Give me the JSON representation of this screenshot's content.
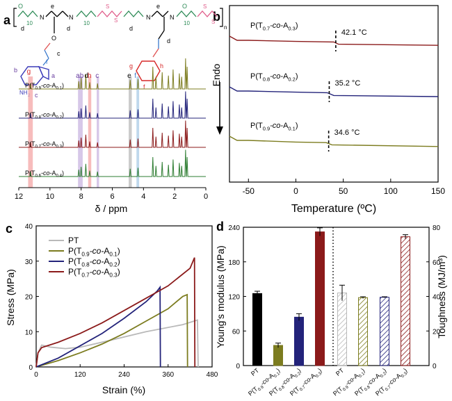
{
  "panel_letters": {
    "a": "a",
    "b": "b",
    "c": "c",
    "d": "d"
  },
  "colors": {
    "PT": "#000000",
    "T09": "#7c7c1f",
    "T08": "#23237a",
    "T07": "#8b1a1a",
    "T06": "#2e7d32",
    "pink": "#f4a6a6",
    "purple": "#c8b4e0",
    "blue": "#a9cbe6",
    "gray": "#b9b9b9",
    "struct_green": "#2e8b57",
    "struct_pink": "#e05c8a",
    "struct_blue": "#3a3ab8",
    "struct_red": "#d62828"
  },
  "structure": {
    "repeat_subscript": "10",
    "side_labels": [
      "e",
      "d",
      "e",
      "d",
      "c",
      "f",
      "g",
      "h"
    ],
    "a_label": "a",
    "b_label": "b",
    "nh2": "NH",
    "nh2_sub": "2",
    "n": "n",
    "n_atoms": [
      "N",
      "N",
      "N",
      "N"
    ],
    "o_atoms": [
      "O",
      "O",
      "O"
    ],
    "s_atoms": [
      "S",
      "S",
      "S",
      "S"
    ]
  },
  "panel_a": {
    "xlabel": "δ / ppm",
    "xticks": [
      "12",
      "10",
      "8",
      "6",
      "4",
      "2",
      "0"
    ],
    "peak_labels": [
      "g",
      "a",
      "b",
      "d",
      "h",
      "c",
      "e",
      "f"
    ],
    "series": [
      {
        "name": "P(T",
        "sub1": "0.9",
        "mid": "-co-",
        "a": "A",
        "sub2": "0.1",
        "close": ")",
        "color_key": "T09"
      },
      {
        "name": "P(T",
        "sub1": "0.8",
        "mid": "-co-",
        "a": "A",
        "sub2": "0.2",
        "close": ")",
        "color_key": "T08"
      },
      {
        "name": "P(T",
        "sub1": "0.7",
        "mid": "-co-",
        "a": "A",
        "sub2": "0.3",
        "close": ")",
        "color_key": "T07"
      },
      {
        "name": "P(T",
        "sub1": "0.6",
        "mid": "-co-",
        "a": "A",
        "sub2": "0.4",
        "close": ")",
        "color_key": "T06"
      }
    ]
  },
  "panel_b": {
    "xlabel": "Temperature (ºC)",
    "ylabel": "Endo",
    "xticks": [
      "-50",
      "0",
      "50",
      "100",
      "150"
    ],
    "curves": [
      {
        "name": "P(T",
        "sub1": "0.7",
        "mid": "-co-",
        "a": "A",
        "sub2": "0.3",
        "close": ")",
        "tg": "42.1 °C",
        "color_key": "T07"
      },
      {
        "name": "P(T",
        "sub1": "0.8",
        "mid": "-co-",
        "a": "A",
        "sub2": "0.2",
        "close": ")",
        "tg": "35.2 °C",
        "color_key": "T08"
      },
      {
        "name": "P(T",
        "sub1": "0.9",
        "mid": "-co-",
        "a": "A",
        "sub2": "0.1",
        "close": ")",
        "tg": "34.6 °C",
        "color_key": "T09"
      }
    ]
  },
  "chart_data": [
    {
      "type": "line",
      "panel": "b",
      "xlabel": "Temperature (ºC)",
      "ylabel": "Endo",
      "xlim": [
        -70,
        150
      ],
      "series": [
        {
          "name": "P(T0.7-co-A0.3)",
          "tg": 42.1,
          "x": [
            -70,
            -62,
            -50,
            0,
            40,
            45,
            150
          ],
          "y": [
            0.0,
            0.0,
            0.0,
            0.02,
            0.03,
            0.07,
            0.09
          ]
        },
        {
          "name": "P(T0.8-co-A0.2)",
          "tg": 35.2,
          "x": [
            -70,
            -62,
            -50,
            0,
            33,
            40,
            150
          ],
          "y": [
            0.0,
            0.0,
            0.0,
            0.02,
            0.03,
            0.08,
            0.1
          ]
        },
        {
          "name": "P(T0.9-co-A0.1)",
          "tg": 34.6,
          "x": [
            -70,
            -62,
            -50,
            0,
            32,
            38,
            150
          ],
          "y": [
            0.0,
            0.0,
            0.0,
            0.03,
            0.04,
            0.08,
            0.11
          ]
        }
      ]
    },
    {
      "type": "line",
      "panel": "c",
      "xlabel": "Strain (%)",
      "ylabel": "Stress (MPa)",
      "xlim": [
        0,
        480
      ],
      "ylim": [
        0,
        40
      ],
      "xticks": [
        "0",
        "120",
        "240",
        "360",
        "480"
      ],
      "yticks": [
        "0",
        "10",
        "20",
        "30",
        "40"
      ],
      "series": [
        {
          "name": "PT",
          "color_key": "gray",
          "x": [
            0,
            5,
            15,
            40,
            80,
            120,
            200,
            300,
            400,
            440,
            442
          ],
          "y": [
            0,
            4,
            6.2,
            5.6,
            5.2,
            5.6,
            7.5,
            10,
            12,
            13.3,
            0
          ]
        },
        {
          "name": "P(T0.9-co-A0.1)",
          "color_key": "T09",
          "x": [
            0,
            60,
            120,
            180,
            240,
            300,
            360,
            400,
            412,
            413
          ],
          "y": [
            0,
            1.8,
            4,
            6.5,
            9.5,
            13,
            16.5,
            20,
            20.5,
            0
          ]
        },
        {
          "name": "P(T0.8-co-A0.2)",
          "color_key": "T08",
          "x": [
            0,
            60,
            120,
            180,
            240,
            300,
            330,
            338,
            339
          ],
          "y": [
            0,
            2.5,
            6,
            9.5,
            13.8,
            18.5,
            21.5,
            22.6,
            0
          ]
        },
        {
          "name": "P(T0.7-co-A0.3)",
          "color_key": "T07",
          "x": [
            0,
            5,
            15,
            60,
            120,
            180,
            240,
            300,
            360,
            420,
            432,
            433
          ],
          "y": [
            0,
            4,
            5.5,
            7,
            9.5,
            12.5,
            16,
            19.5,
            23,
            28,
            31,
            0
          ]
        }
      ]
    },
    {
      "type": "bar",
      "panel": "d",
      "ylabel_left": "Young's modulus (MPa)",
      "ylabel_right": "Toughness (MJ/m³)",
      "ylim_left": [
        0,
        240
      ],
      "ylim_right": [
        0,
        80
      ],
      "yticks_left": [
        "0",
        "60",
        "120",
        "180",
        "240"
      ],
      "yticks_right": [
        "0",
        "20",
        "40",
        "60",
        "80"
      ],
      "modulus": [
        {
          "label": "PT",
          "value": 125,
          "error": 4,
          "color_key": "PT"
        },
        {
          "label": "P(T0.9-co-A0.1)",
          "value": 35,
          "error": 4,
          "color_key": "T09"
        },
        {
          "label": "P(T0.8-co-A0.2)",
          "value": 84,
          "error": 6,
          "color_key": "T08"
        },
        {
          "label": "P(T0.7-co-A0.3)",
          "value": 232,
          "error": 7,
          "color_key": "T07"
        }
      ],
      "toughness": [
        {
          "label": "PT",
          "value": 42,
          "error": 4.5,
          "color_key": "gray"
        },
        {
          "label": "P(T0.9-co-A0.1)",
          "value": 39.3,
          "error": 0.5,
          "color_key": "T09"
        },
        {
          "label": "P(T0.8-co-A0.2)",
          "value": 39.5,
          "error": 0.3,
          "color_key": "T08"
        },
        {
          "label": "P(T0.7-co-A0.3)",
          "value": 74.5,
          "error": 1.2,
          "color_key": "T07"
        }
      ]
    }
  ],
  "panel_c_legend": [
    {
      "name": "PT",
      "color_key": "gray"
    },
    {
      "name": "P(T",
      "sub1": "0.9",
      "mid": "-co-",
      "a": "A",
      "sub2": "0.1",
      "close": ")",
      "color_key": "T09"
    },
    {
      "name": "P(T",
      "sub1": "0.8",
      "mid": "-co-",
      "a": "A",
      "sub2": "0.2",
      "close": ")",
      "color_key": "T08"
    },
    {
      "name": "P(T",
      "sub1": "0.7",
      "mid": "-co-",
      "a": "A",
      "sub2": "0.3",
      "close": ")",
      "color_key": "T07"
    }
  ],
  "panel_d_xlabels": [
    {
      "name": "PT"
    },
    {
      "name": "P(T",
      "sub1": "0.9",
      "mid": "-co-",
      "a": "A",
      "sub2": "0.1",
      "close": ")"
    },
    {
      "name": "P(T",
      "sub1": "0.8",
      "mid": "-co-",
      "a": "A",
      "sub2": "0.2",
      "close": ")"
    },
    {
      "name": "P(T",
      "sub1": "0.7",
      "mid": "-co-",
      "a": "A",
      "sub2": "0.3",
      "close": ")"
    },
    {
      "name": "PT"
    },
    {
      "name": "P(T",
      "sub1": "0.9",
      "mid": "-co-",
      "a": "A",
      "sub2": "0.1",
      "close": ")"
    },
    {
      "name": "P(T",
      "sub1": "0.8",
      "mid": "-co-",
      "a": "A",
      "sub2": "0.2",
      "close": ")"
    },
    {
      "name": "P(T",
      "sub1": "0.7",
      "mid": "-co-",
      "a": "A",
      "sub2": "0.3",
      "close": ")"
    }
  ]
}
